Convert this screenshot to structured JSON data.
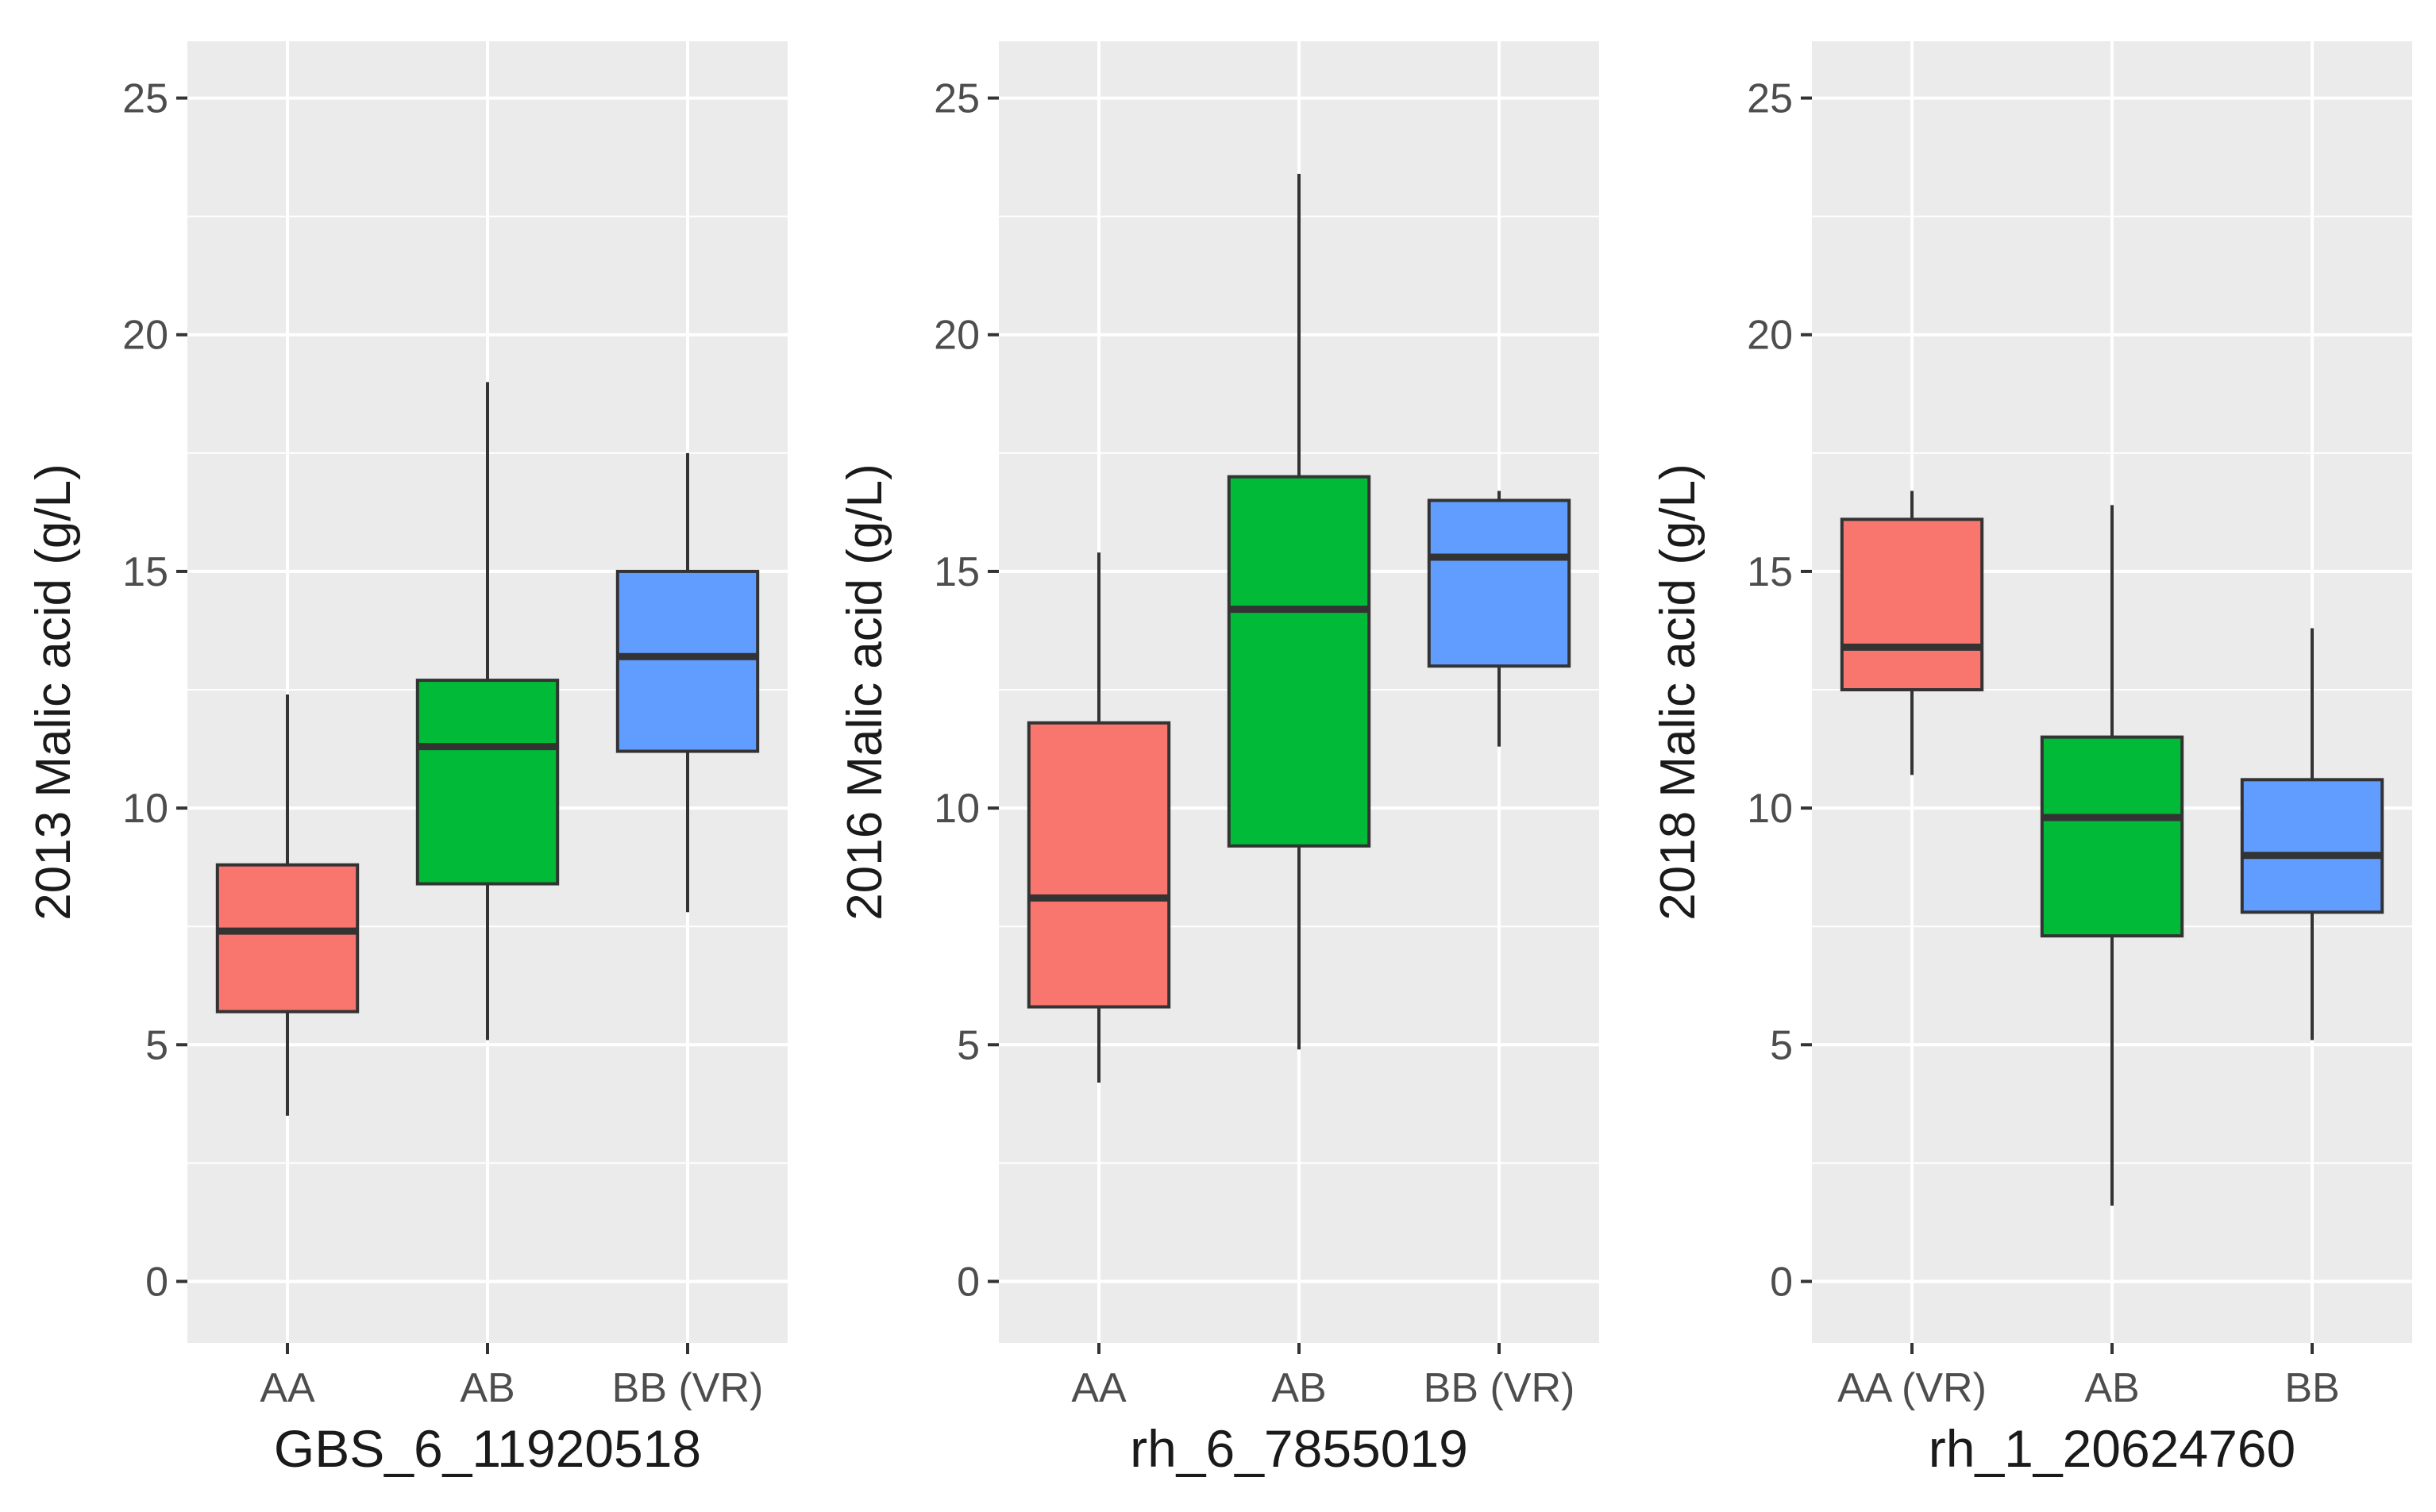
{
  "chart_data": [
    {
      "type": "box",
      "xlabel": "GBS_6_11920518",
      "ylabel": "2013 Malic acid (g/L)",
      "ylim": [
        -1.3,
        26.2
      ],
      "yticks": [
        0,
        5,
        10,
        15,
        20,
        25
      ],
      "grid": true,
      "categories": [
        "AA",
        "AB",
        "BB (VR)"
      ],
      "boxes": [
        {
          "category": "AA",
          "color": "#F8766D",
          "min": 3.5,
          "q1": 5.7,
          "median": 7.4,
          "q3": 8.8,
          "max": 12.4
        },
        {
          "category": "AB",
          "color": "#00BA38",
          "min": 5.1,
          "q1": 8.4,
          "median": 11.3,
          "q3": 12.7,
          "max": 19.0
        },
        {
          "category": "BB (VR)",
          "color": "#619CFF",
          "min": 7.8,
          "q1": 11.2,
          "median": 13.2,
          "q3": 15.0,
          "max": 17.5
        }
      ]
    },
    {
      "type": "box",
      "xlabel": "rh_6_7855019",
      "ylabel": "2016 Malic acid (g/L)",
      "ylim": [
        -1.3,
        26.2
      ],
      "yticks": [
        0,
        5,
        10,
        15,
        20,
        25
      ],
      "grid": true,
      "categories": [
        "AA",
        "AB",
        "BB (VR)"
      ],
      "boxes": [
        {
          "category": "AA",
          "color": "#F8766D",
          "min": 4.2,
          "q1": 5.8,
          "median": 8.1,
          "q3": 11.8,
          "max": 15.4
        },
        {
          "category": "AB",
          "color": "#00BA38",
          "min": 4.9,
          "q1": 9.2,
          "median": 14.2,
          "q3": 17.0,
          "max": 23.4
        },
        {
          "category": "BB (VR)",
          "color": "#619CFF",
          "min": 11.3,
          "q1": 13.0,
          "median": 15.3,
          "q3": 16.5,
          "max": 16.7
        }
      ]
    },
    {
      "type": "box",
      "xlabel": "rh_1_20624760",
      "ylabel": "2018 Malic acid (g/L)",
      "ylim": [
        -1.3,
        26.2
      ],
      "yticks": [
        0,
        5,
        10,
        15,
        20,
        25
      ],
      "grid": true,
      "categories": [
        "AA (VR)",
        "AB",
        "BB"
      ],
      "boxes": [
        {
          "category": "AA (VR)",
          "color": "#F8766D",
          "min": 10.7,
          "q1": 12.5,
          "median": 13.4,
          "q3": 16.1,
          "max": 16.7
        },
        {
          "category": "AB",
          "color": "#00BA38",
          "min": 1.6,
          "q1": 7.3,
          "median": 9.8,
          "q3": 11.5,
          "max": 16.4
        },
        {
          "category": "BB",
          "color": "#619CFF",
          "min": 5.1,
          "q1": 7.8,
          "median": 9.0,
          "q3": 10.6,
          "max": 13.8
        }
      ]
    }
  ],
  "colors": {
    "panel_background": "#EBEBEB",
    "grid_major": "#FFFFFF",
    "box_outline": "#333333",
    "text": "#1A1A1A",
    "tick_text": "#4D4D4D"
  }
}
